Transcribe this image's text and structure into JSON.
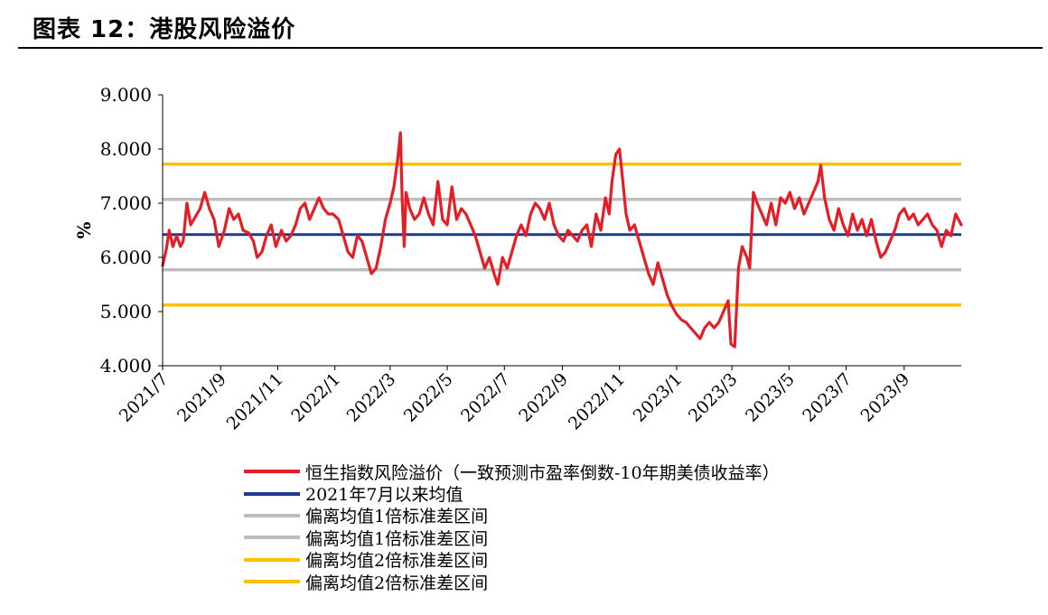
{
  "figure": {
    "title": "图表 12：港股风险溢价"
  },
  "chart_data": {
    "type": "line",
    "ylabel": "%",
    "ylim": [
      4.0,
      9.0
    ],
    "y_ticks": [
      "9.000",
      "8.000",
      "7.000",
      "6.000",
      "5.000",
      "4.000"
    ],
    "x_ticks": [
      "2021/7",
      "2021/9",
      "2021/11",
      "2022/1",
      "2022/3",
      "2022/5",
      "2022/7",
      "2022/9",
      "2022/11",
      "2023/1",
      "2023/3",
      "2023/5",
      "2023/7",
      "2023/9"
    ],
    "x_range": [
      "2021-07-01",
      "2023-11-01"
    ],
    "grid": false,
    "legend_position": "bottom",
    "series": [
      {
        "name": "恒生指数风险溢价（一致预测市盈率倒数-10年期美债收益率）",
        "color": "#e41e26",
        "points": [
          [
            "2021-07-01",
            5.85
          ],
          [
            "2021-07-05",
            6.15
          ],
          [
            "2021-07-08",
            6.5
          ],
          [
            "2021-07-12",
            6.2
          ],
          [
            "2021-07-16",
            6.4
          ],
          [
            "2021-07-20",
            6.2
          ],
          [
            "2021-07-23",
            6.3
          ],
          [
            "2021-07-27",
            7.0
          ],
          [
            "2021-07-31",
            6.6
          ],
          [
            "2021-08-05",
            6.75
          ],
          [
            "2021-08-10",
            6.9
          ],
          [
            "2021-08-15",
            7.2
          ],
          [
            "2021-08-20",
            6.9
          ],
          [
            "2021-08-25",
            6.7
          ],
          [
            "2021-08-30",
            6.2
          ],
          [
            "2021-09-05",
            6.5
          ],
          [
            "2021-09-10",
            6.9
          ],
          [
            "2021-09-15",
            6.7
          ],
          [
            "2021-09-20",
            6.8
          ],
          [
            "2021-09-25",
            6.5
          ],
          [
            "2021-10-01",
            6.45
          ],
          [
            "2021-10-06",
            6.3
          ],
          [
            "2021-10-10",
            6.0
          ],
          [
            "2021-10-15",
            6.1
          ],
          [
            "2021-10-20",
            6.4
          ],
          [
            "2021-10-25",
            6.6
          ],
          [
            "2021-10-30",
            6.2
          ],
          [
            "2021-11-05",
            6.5
          ],
          [
            "2021-11-10",
            6.3
          ],
          [
            "2021-11-15",
            6.4
          ],
          [
            "2021-11-20",
            6.6
          ],
          [
            "2021-11-25",
            6.9
          ],
          [
            "2021-11-30",
            7.0
          ],
          [
            "2021-12-05",
            6.7
          ],
          [
            "2021-12-10",
            6.9
          ],
          [
            "2021-12-15",
            7.1
          ],
          [
            "2021-12-20",
            6.9
          ],
          [
            "2021-12-25",
            6.8
          ],
          [
            "2021-12-30",
            6.8
          ],
          [
            "2022-01-05",
            6.7
          ],
          [
            "2022-01-10",
            6.4
          ],
          [
            "2022-01-15",
            6.1
          ],
          [
            "2022-01-20",
            6.0
          ],
          [
            "2022-01-25",
            6.4
          ],
          [
            "2022-01-30",
            6.3
          ],
          [
            "2022-02-04",
            6.0
          ],
          [
            "2022-02-09",
            5.7
          ],
          [
            "2022-02-14",
            5.8
          ],
          [
            "2022-02-19",
            6.2
          ],
          [
            "2022-02-24",
            6.7
          ],
          [
            "2022-03-01",
            7.0
          ],
          [
            "2022-03-05",
            7.3
          ],
          [
            "2022-03-09",
            7.8
          ],
          [
            "2022-03-12",
            8.3
          ],
          [
            "2022-03-14",
            7.0
          ],
          [
            "2022-03-16",
            6.2
          ],
          [
            "2022-03-18",
            7.2
          ],
          [
            "2022-03-22",
            6.9
          ],
          [
            "2022-03-27",
            6.7
          ],
          [
            "2022-04-01",
            6.8
          ],
          [
            "2022-04-06",
            7.1
          ],
          [
            "2022-04-11",
            6.8
          ],
          [
            "2022-04-16",
            6.6
          ],
          [
            "2022-04-21",
            7.4
          ],
          [
            "2022-04-26",
            6.7
          ],
          [
            "2022-05-01",
            6.6
          ],
          [
            "2022-05-06",
            7.3
          ],
          [
            "2022-05-11",
            6.7
          ],
          [
            "2022-05-16",
            6.9
          ],
          [
            "2022-05-21",
            6.8
          ],
          [
            "2022-05-26",
            6.6
          ],
          [
            "2022-05-31",
            6.4
          ],
          [
            "2022-06-05",
            6.1
          ],
          [
            "2022-06-10",
            5.8
          ],
          [
            "2022-06-15",
            6.0
          ],
          [
            "2022-06-20",
            5.7
          ],
          [
            "2022-06-24",
            5.5
          ],
          [
            "2022-06-29",
            6.0
          ],
          [
            "2022-07-04",
            5.8
          ],
          [
            "2022-07-09",
            6.1
          ],
          [
            "2022-07-14",
            6.4
          ],
          [
            "2022-07-19",
            6.6
          ],
          [
            "2022-07-24",
            6.4
          ],
          [
            "2022-07-29",
            6.8
          ],
          [
            "2022-08-03",
            7.0
          ],
          [
            "2022-08-08",
            6.9
          ],
          [
            "2022-08-13",
            6.7
          ],
          [
            "2022-08-18",
            7.0
          ],
          [
            "2022-08-23",
            6.6
          ],
          [
            "2022-08-28",
            6.4
          ],
          [
            "2022-09-02",
            6.3
          ],
          [
            "2022-09-07",
            6.5
          ],
          [
            "2022-09-12",
            6.4
          ],
          [
            "2022-09-17",
            6.3
          ],
          [
            "2022-09-22",
            6.5
          ],
          [
            "2022-09-27",
            6.6
          ],
          [
            "2022-10-02",
            6.2
          ],
          [
            "2022-10-07",
            6.8
          ],
          [
            "2022-10-12",
            6.5
          ],
          [
            "2022-10-17",
            7.1
          ],
          [
            "2022-10-21",
            6.8
          ],
          [
            "2022-10-24",
            7.4
          ],
          [
            "2022-10-28",
            7.9
          ],
          [
            "2022-11-01",
            8.0
          ],
          [
            "2022-11-04",
            7.5
          ],
          [
            "2022-11-08",
            6.8
          ],
          [
            "2022-11-12",
            6.5
          ],
          [
            "2022-11-17",
            6.6
          ],
          [
            "2022-11-22",
            6.3
          ],
          [
            "2022-11-27",
            6.0
          ],
          [
            "2022-12-02",
            5.7
          ],
          [
            "2022-12-07",
            5.5
          ],
          [
            "2022-12-12",
            5.9
          ],
          [
            "2022-12-17",
            5.6
          ],
          [
            "2022-12-22",
            5.3
          ],
          [
            "2022-12-27",
            5.1
          ],
          [
            "2023-01-01",
            4.95
          ],
          [
            "2023-01-06",
            4.85
          ],
          [
            "2023-01-11",
            4.8
          ],
          [
            "2023-01-16",
            4.7
          ],
          [
            "2023-01-21",
            4.6
          ],
          [
            "2023-01-26",
            4.5
          ],
          [
            "2023-01-31",
            4.7
          ],
          [
            "2023-02-05",
            4.8
          ],
          [
            "2023-02-10",
            4.7
          ],
          [
            "2023-02-15",
            4.8
          ],
          [
            "2023-02-20",
            5.0
          ],
          [
            "2023-02-25",
            5.2
          ],
          [
            "2023-02-28",
            4.4
          ],
          [
            "2023-03-04",
            4.35
          ],
          [
            "2023-03-08",
            5.8
          ],
          [
            "2023-03-12",
            6.2
          ],
          [
            "2023-03-17",
            6.0
          ],
          [
            "2023-03-20",
            5.8
          ],
          [
            "2023-03-24",
            7.2
          ],
          [
            "2023-03-28",
            7.0
          ],
          [
            "2023-04-02",
            6.8
          ],
          [
            "2023-04-07",
            6.6
          ],
          [
            "2023-04-12",
            7.0
          ],
          [
            "2023-04-17",
            6.6
          ],
          [
            "2023-04-22",
            7.1
          ],
          [
            "2023-04-27",
            7.0
          ],
          [
            "2023-05-02",
            7.2
          ],
          [
            "2023-05-07",
            6.9
          ],
          [
            "2023-05-12",
            7.1
          ],
          [
            "2023-05-17",
            6.8
          ],
          [
            "2023-05-22",
            7.0
          ],
          [
            "2023-05-27",
            7.2
          ],
          [
            "2023-06-01",
            7.4
          ],
          [
            "2023-06-04",
            7.7
          ],
          [
            "2023-06-08",
            7.1
          ],
          [
            "2023-06-13",
            6.7
          ],
          [
            "2023-06-18",
            6.5
          ],
          [
            "2023-06-23",
            6.9
          ],
          [
            "2023-06-28",
            6.6
          ],
          [
            "2023-07-03",
            6.4
          ],
          [
            "2023-07-08",
            6.8
          ],
          [
            "2023-07-13",
            6.5
          ],
          [
            "2023-07-18",
            6.7
          ],
          [
            "2023-07-23",
            6.4
          ],
          [
            "2023-07-28",
            6.7
          ],
          [
            "2023-08-02",
            6.3
          ],
          [
            "2023-08-07",
            6.0
          ],
          [
            "2023-08-12",
            6.1
          ],
          [
            "2023-08-17",
            6.3
          ],
          [
            "2023-08-22",
            6.5
          ],
          [
            "2023-08-27",
            6.8
          ],
          [
            "2023-09-01",
            6.9
          ],
          [
            "2023-09-06",
            6.7
          ],
          [
            "2023-09-11",
            6.8
          ],
          [
            "2023-09-16",
            6.6
          ],
          [
            "2023-09-21",
            6.7
          ],
          [
            "2023-09-26",
            6.8
          ],
          [
            "2023-10-01",
            6.6
          ],
          [
            "2023-10-06",
            6.5
          ],
          [
            "2023-10-11",
            6.2
          ],
          [
            "2023-10-16",
            6.5
          ],
          [
            "2023-10-21",
            6.4
          ],
          [
            "2023-10-26",
            6.8
          ],
          [
            "2023-11-01",
            6.6
          ]
        ]
      },
      {
        "name": "2021年7月以来均值",
        "color": "#1f3a8a",
        "value": 6.42
      },
      {
        "name": "偏离均值1倍标准差区间",
        "color": "#bdbdbd",
        "value": 7.07
      },
      {
        "name": "偏离均值1倍标准差区间",
        "color": "#bdbdbd",
        "value": 5.77
      },
      {
        "name": "偏离均值2倍标准差区间",
        "color": "#ffc000",
        "value": 7.72
      },
      {
        "name": "偏离均值2倍标准差区间",
        "color": "#ffc000",
        "value": 5.12
      }
    ]
  }
}
